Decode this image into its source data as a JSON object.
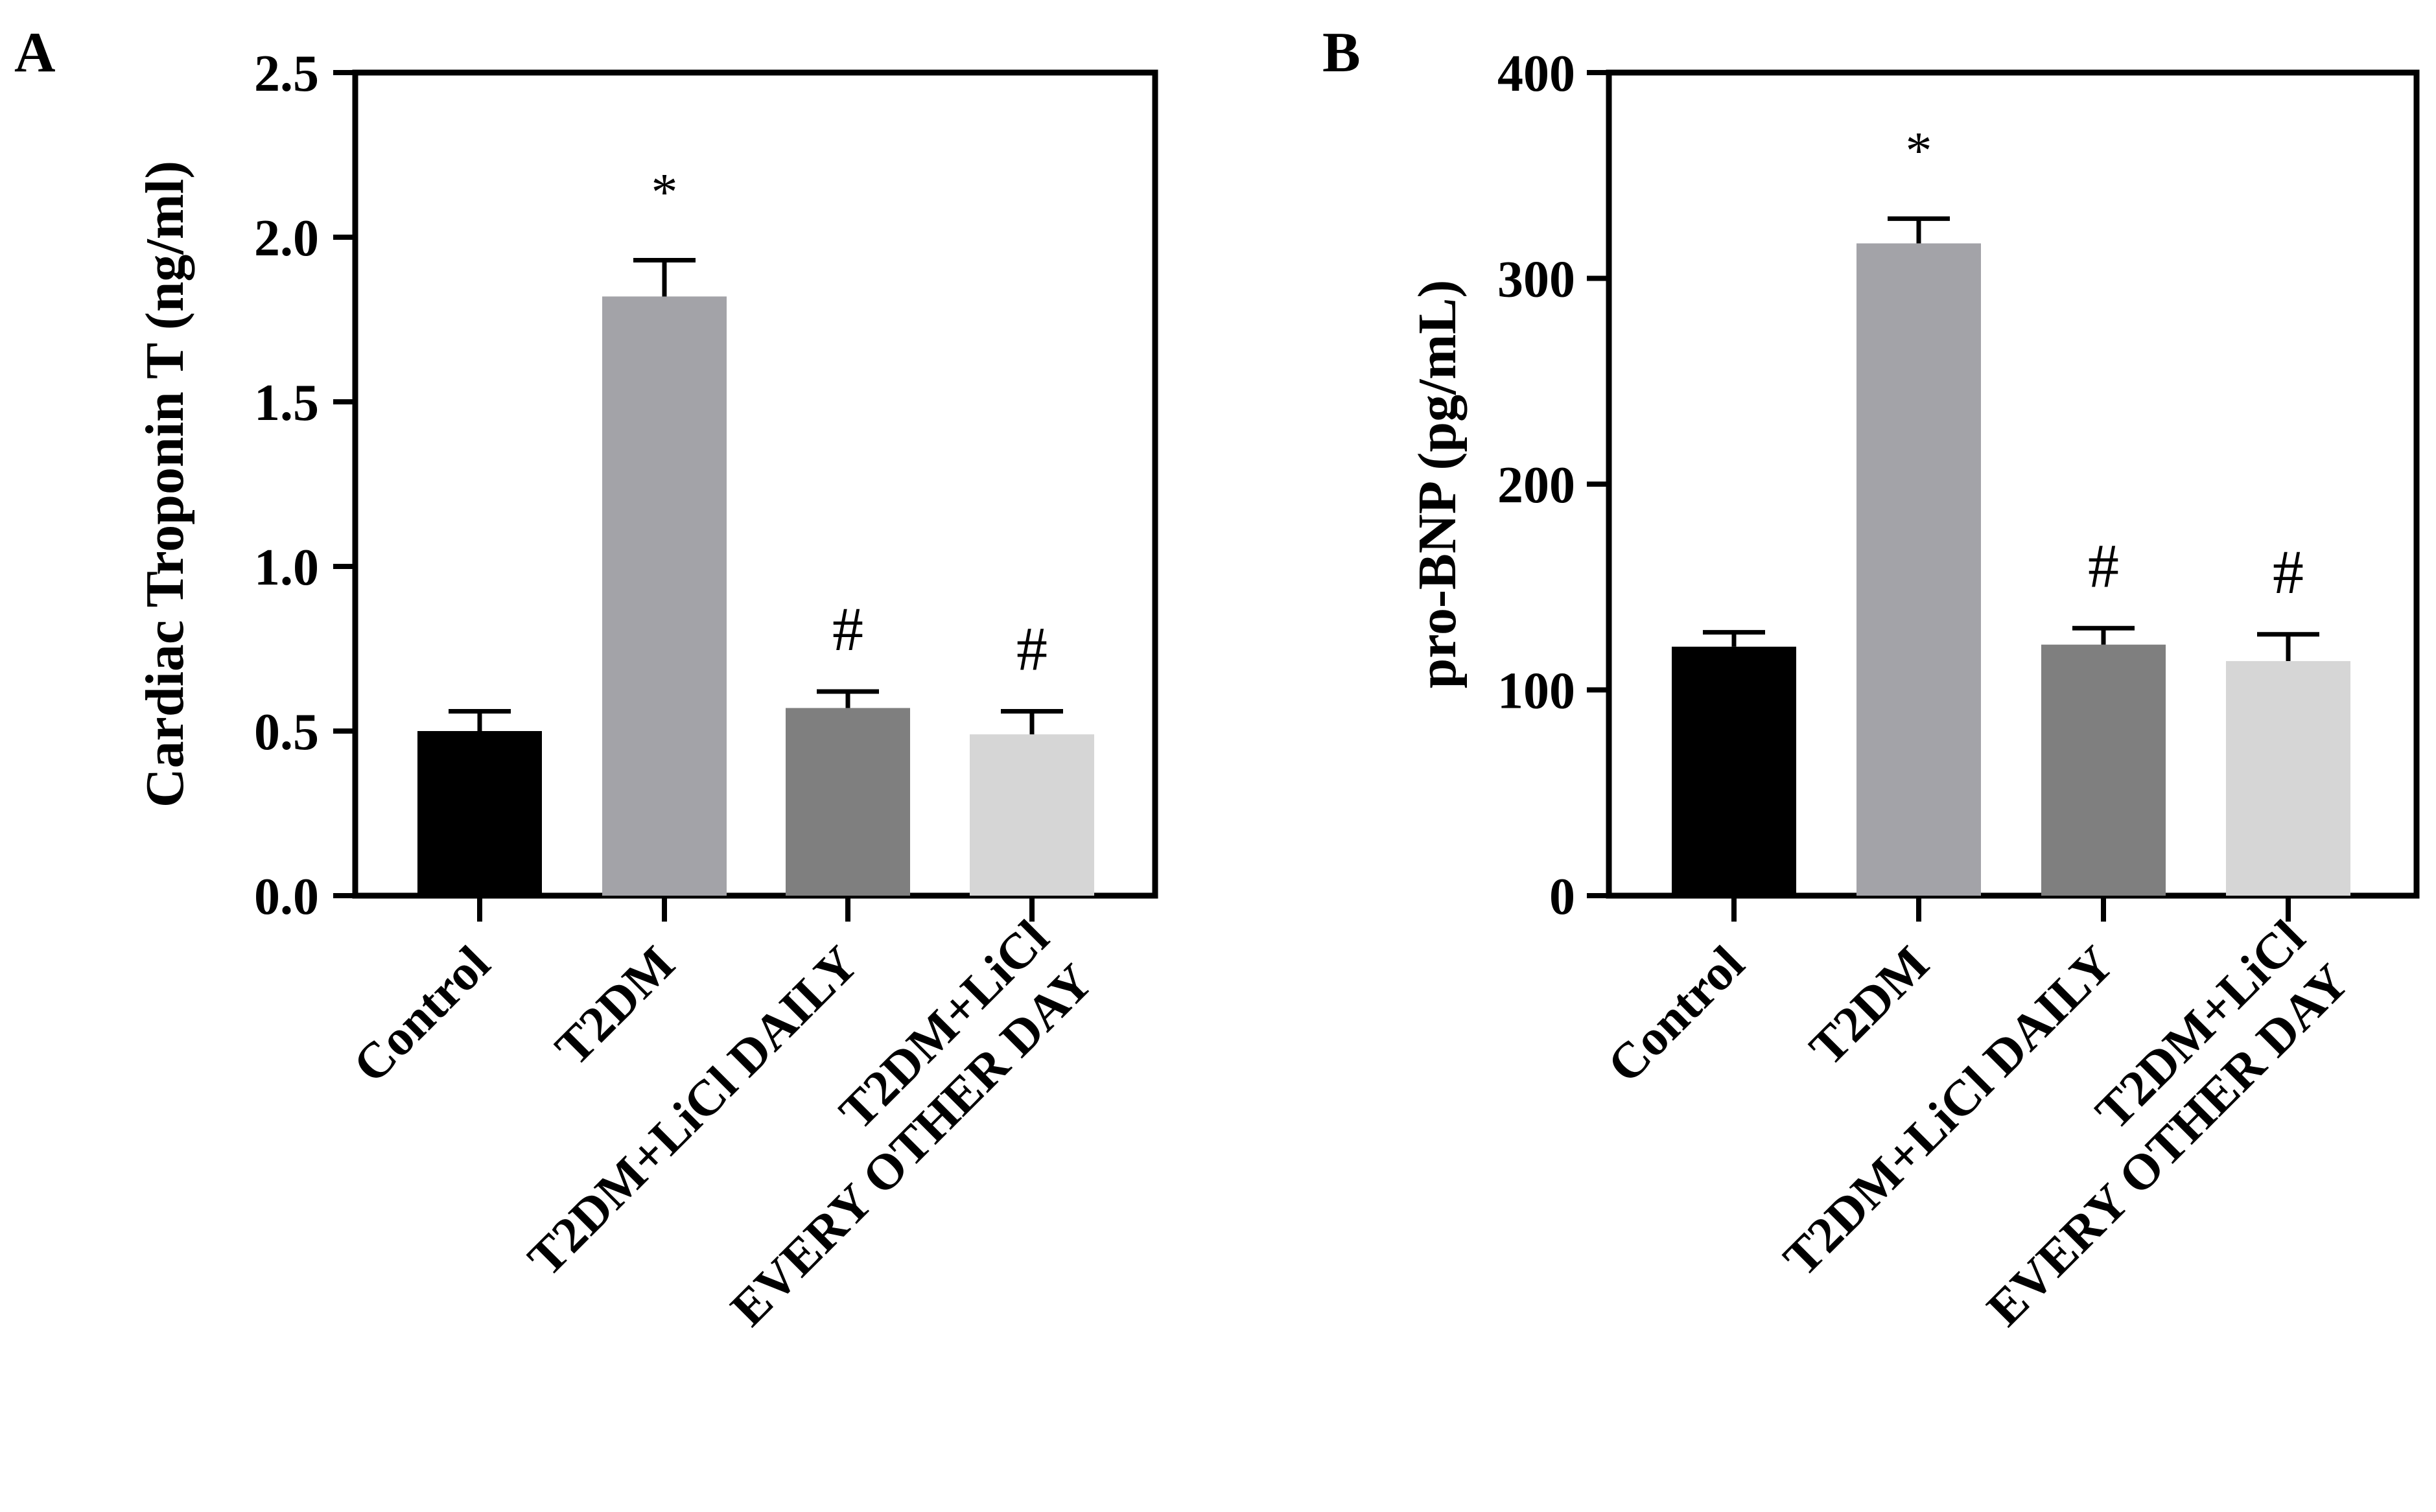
{
  "chart_data": [
    {
      "panel_label": "A",
      "type": "bar",
      "ylabel": "Cardiac Troponin T  (ng/ml)",
      "ylim": [
        0,
        2.5
      ],
      "yticks": [
        "0.0",
        "0.5",
        "1.0",
        "1.5",
        "2.0",
        "2.5"
      ],
      "ytick_values": [
        0,
        0.5,
        1.0,
        1.5,
        2.0,
        2.5
      ],
      "categories": [
        [
          "Control"
        ],
        [
          "T2DM"
        ],
        [
          "T2DM+LiCl DAILY"
        ],
        [
          "T2DM+LiCl",
          "EVERY OTHER DAY"
        ]
      ],
      "values": [
        0.5,
        1.82,
        0.57,
        0.49
      ],
      "errors": [
        0.06,
        0.11,
        0.05,
        0.07
      ],
      "annotations": [
        "",
        "*",
        "#",
        "#"
      ],
      "colors": [
        "#000000",
        "#a3a3a8",
        "#7f7f7f",
        "#d6d6d6"
      ]
    },
    {
      "panel_label": "B",
      "type": "bar",
      "ylabel": "pro-BNP (pg/mL)",
      "ylim": [
        0,
        400
      ],
      "yticks": [
        "0",
        "100",
        "200",
        "300",
        "400"
      ],
      "ytick_values": [
        0,
        100,
        200,
        300,
        400
      ],
      "categories": [
        [
          "Control"
        ],
        [
          "T2DM"
        ],
        [
          "T2DM+LiCl DAILY"
        ],
        [
          "T2DM+LiCl",
          "EVERY OTHER DAY"
        ]
      ],
      "values": [
        121,
        317,
        122,
        114
      ],
      "errors": [
        7,
        12,
        8,
        13
      ],
      "annotations": [
        "",
        "*",
        "#",
        "#"
      ],
      "colors": [
        "#000000",
        "#a3a3a8",
        "#7f7f7f",
        "#d6d6d6"
      ]
    }
  ]
}
